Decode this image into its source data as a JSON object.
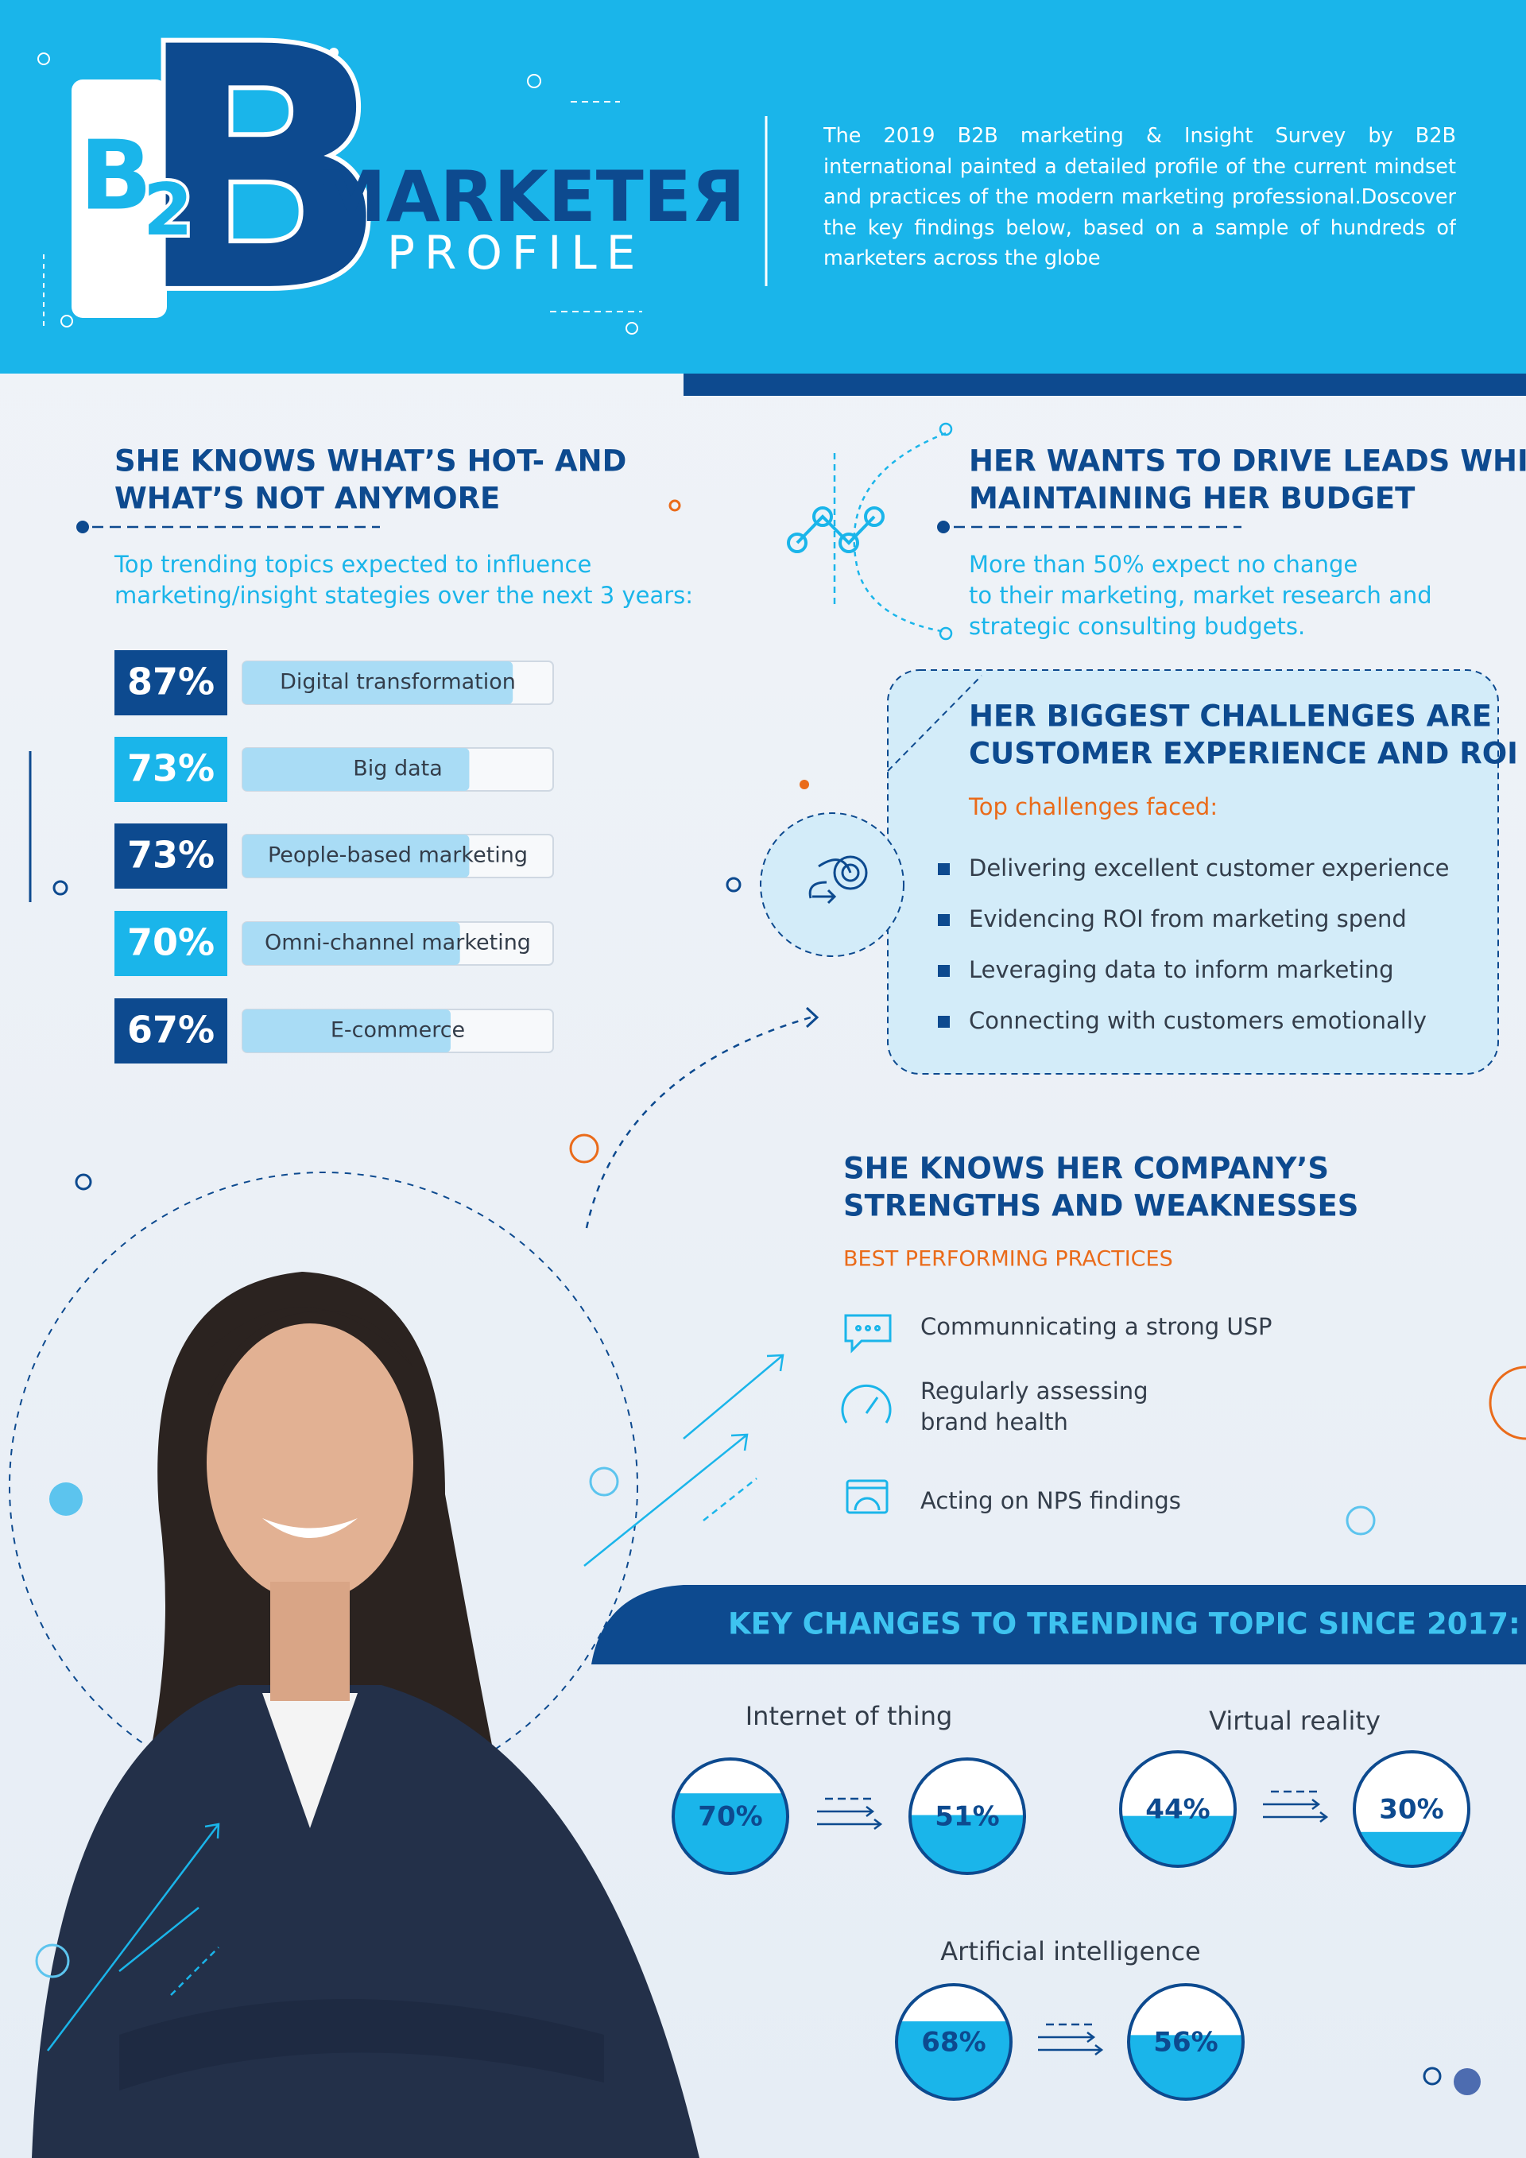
{
  "header": {
    "logo_letters": [
      "B",
      "2",
      "B"
    ],
    "logo_word": "MARKETEЯ",
    "logo_subword": "PROFILE",
    "description": "The 2019 B2B marketing & Insight Survey by B2B international painted a detailed profile of the current mindset and practices of the modern marketing professional.Doscover the key findings below, based on a sample of hundreds of marketers across the globe"
  },
  "trending": {
    "title_lines": [
      "SHE KNOWS WHAT’S HOT- AND",
      "WHAT’S NOT ANYMORE"
    ],
    "subtitle_lines": [
      "Top trending topics expected to influence",
      "marketing/insight stategies over the next 3 years:"
    ],
    "topics": [
      "Digital transformation",
      "Big data",
      "People-based marketing",
      "Omni-channel marketing",
      "E-commerce"
    ],
    "values": [
      87,
      73,
      73,
      70,
      67
    ],
    "value_labels": [
      "87%",
      "73%",
      "73%",
      "70%",
      "67%"
    ]
  },
  "budget": {
    "title_lines": [
      "HER WANTS TO DRIVE LEADS WHILE",
      "MAINTAINING HER BUDGET"
    ],
    "text_lines": [
      "More than 50% expect no change",
      "to their marketing, market research and",
      "strategic consulting budgets."
    ]
  },
  "challenges": {
    "title_lines": [
      "HER BIGGEST CHALLENGES ARE",
      "CUSTOMER EXPERIENCE AND ROI"
    ],
    "subtitle": "Top challenges faced:",
    "items": [
      "Delivering excellent customer experience",
      "Evidencing ROI from marketing spend",
      "Leveraging data to inform marketing",
      "Connecting with customers emotionally"
    ]
  },
  "practices": {
    "title_lines": [
      "SHE KNOWS HER COMPANY’S",
      "STRENGTHS AND WEAKNESSES"
    ],
    "subtitle": "BEST PERFORMING PRACTICES",
    "items": [
      [
        "Communnicating a strong USP"
      ],
      [
        "Regularly assessing",
        "brand health"
      ],
      [
        "Acting on NPS findings"
      ]
    ]
  },
  "key_changes": {
    "title": "KEY CHANGES TO TRENDING TOPIC SINCE 2017:",
    "topics": [
      {
        "name": "Internet of thing",
        "values": [
          70,
          51
        ],
        "value_labels": [
          "70%",
          "51%"
        ]
      },
      {
        "name": "Virtual reality",
        "values": [
          44,
          30
        ],
        "value_labels": [
          "44%",
          "30%"
        ]
      },
      {
        "name": "Artificial intelligence",
        "values": [
          68,
          56
        ],
        "value_labels": [
          "68%",
          "56%"
        ]
      }
    ]
  }
}
